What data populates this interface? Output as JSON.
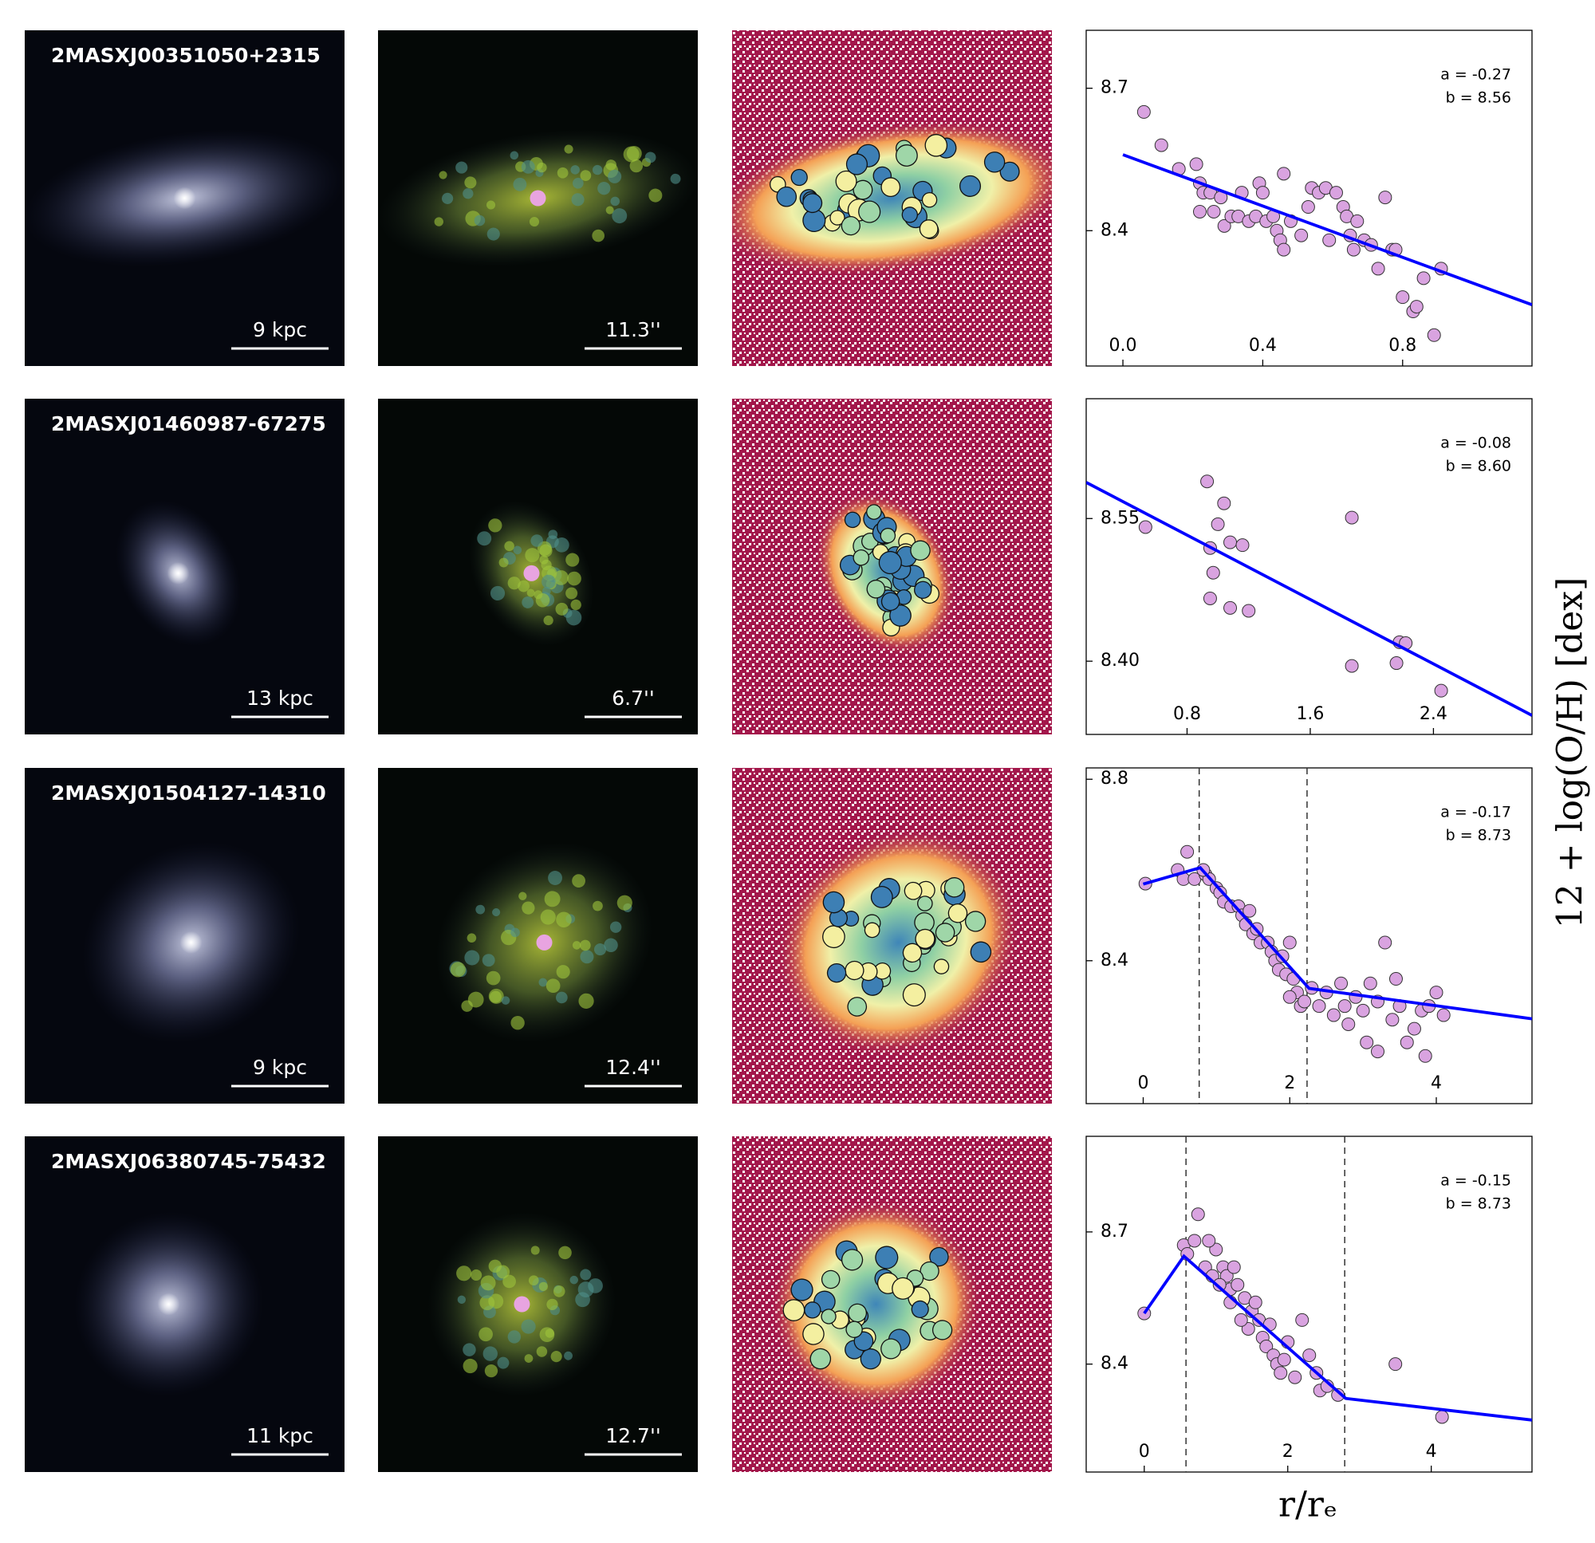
{
  "panels": [
    {
      "name": "2MASXJ00351050+2315",
      "scale_kpc": "9 kpc",
      "scale_arcsec": "11.3''"
    },
    {
      "name": "2MASXJ01460987-67275",
      "scale_kpc": "13 kpc",
      "scale_arcsec": "6.7''"
    },
    {
      "name": "2MASXJ01504127-14310",
      "scale_kpc": "9 kpc",
      "scale_arcsec": "12.4''"
    },
    {
      "name": "2MASXJ06380745-75432",
      "scale_kpc": "11 kpc",
      "scale_arcsec": "12.7''"
    }
  ],
  "figure": {
    "xlabel": "r/rₑ",
    "ylabel": "12 + log(O/H) [dex]"
  },
  "chart_data": [
    {
      "type": "scatter",
      "color": "#d9a3e0",
      "x": [
        0.06,
        0.11,
        0.16,
        0.21,
        0.22,
        0.23,
        0.25,
        0.22,
        0.26,
        0.28,
        0.29,
        0.31,
        0.33,
        0.34,
        0.36,
        0.38,
        0.39,
        0.4,
        0.41,
        0.43,
        0.44,
        0.45,
        0.46,
        0.46,
        0.48,
        0.51,
        0.53,
        0.54,
        0.56,
        0.58,
        0.59,
        0.61,
        0.63,
        0.64,
        0.65,
        0.66,
        0.67,
        0.69,
        0.71,
        0.73,
        0.75,
        0.77,
        0.78,
        0.8,
        0.83,
        0.84,
        0.86,
        0.89,
        0.91
      ],
      "values": [
        8.65,
        8.58,
        8.53,
        8.54,
        8.5,
        8.48,
        8.48,
        8.44,
        8.44,
        8.47,
        8.41,
        8.43,
        8.43,
        8.48,
        8.42,
        8.43,
        8.5,
        8.48,
        8.42,
        8.43,
        8.4,
        8.38,
        8.52,
        8.36,
        8.42,
        8.39,
        8.45,
        8.49,
        8.48,
        8.49,
        8.38,
        8.48,
        8.45,
        8.43,
        8.39,
        8.36,
        8.42,
        8.38,
        8.37,
        8.32,
        8.47,
        8.36,
        8.36,
        8.26,
        8.23,
        8.24,
        8.3,
        8.18,
        8.32
      ],
      "fit": {
        "color": "#0000ff",
        "x": [
          0,
          1.17
        ],
        "values": [
          8.56,
          8.244
        ]
      },
      "vlines": [],
      "annotations": [
        "a = -0.27",
        "b = 8.56"
      ],
      "xlim": [
        -0.105,
        1.17
      ],
      "ylim": [
        8.115,
        8.822
      ],
      "xticks": [
        {
          "value": 0,
          "label": "0.0"
        },
        0.4,
        0.8
      ],
      "yticks": [
        8.4,
        8.7
      ]
    },
    {
      "type": "scatter",
      "color": "#d9a3e0",
      "x": [
        0.53,
        0.93,
        1.04,
        1.0,
        1.08,
        0.95,
        1.16,
        0.97,
        0.95,
        1.08,
        1.2,
        1.87,
        1.87,
        2.16,
        2.18,
        2.22,
        2.45
      ],
      "values": [
        8.541,
        8.589,
        8.566,
        8.544,
        8.525,
        8.519,
        8.522,
        8.493,
        8.466,
        8.456,
        8.453,
        8.551,
        8.395,
        8.398,
        8.42,
        8.419,
        8.369
      ],
      "fit": {
        "color": "#0000ff",
        "x": [
          0.145,
          3.04
        ],
        "values": [
          8.588,
          8.343
        ]
      },
      "vlines": [],
      "annotations": [
        "a = -0.08",
        "b = 8.60"
      ],
      "xlim": [
        0.145,
        3.04
      ],
      "ylim": [
        8.323,
        8.676
      ],
      "xticks": [
        0.8,
        1.6,
        2.4
      ],
      "yticks": [
        {
          "value": 8.4,
          "label": "8.40"
        },
        8.55
      ]
    },
    {
      "type": "scatter",
      "color": "#d9a3e0",
      "x": [
        0.03,
        0.47,
        0.6,
        0.55,
        0.7,
        0.85,
        0.9,
        0.82,
        1.0,
        1.05,
        1.1,
        1.2,
        1.3,
        1.35,
        1.4,
        1.5,
        1.55,
        1.6,
        1.45,
        1.7,
        1.75,
        1.8,
        1.85,
        1.9,
        1.95,
        2.0,
        2.05,
        2.1,
        2.15,
        2.2,
        2.0,
        2.3,
        2.4,
        2.5,
        2.6,
        2.7,
        2.75,
        2.8,
        2.9,
        3.0,
        3.1,
        3.2,
        3.3,
        3.4,
        3.5,
        3.6,
        3.7,
        3.8,
        3.85,
        3.9,
        4.0,
        4.1,
        3.2,
        3.05,
        3.45
      ],
      "values": [
        8.57,
        8.6,
        8.64,
        8.58,
        8.58,
        8.59,
        8.58,
        8.6,
        8.56,
        8.55,
        8.53,
        8.52,
        8.52,
        8.5,
        8.48,
        8.46,
        8.47,
        8.44,
        8.51,
        8.44,
        8.42,
        8.4,
        8.38,
        8.41,
        8.37,
        8.44,
        8.36,
        8.33,
        8.3,
        8.31,
        8.32,
        8.34,
        8.3,
        8.33,
        8.28,
        8.35,
        8.3,
        8.26,
        8.32,
        8.29,
        8.35,
        8.31,
        8.44,
        8.27,
        8.3,
        8.22,
        8.25,
        8.29,
        8.19,
        8.3,
        8.33,
        8.28,
        8.2,
        8.22,
        8.36
      ],
      "fit": {
        "color": "#0000ff",
        "x": [
          0,
          0.778,
          2.264,
          5.306
        ],
        "values": [
          8.569,
          8.605,
          8.339,
          8.272
        ]
      },
      "vlines": [
        0.764,
        2.236
      ],
      "annotations": [
        "a = -0.17",
        "b = 8.73"
      ],
      "xlim": [
        -0.778,
        5.306
      ],
      "ylim": [
        8.085,
        8.825
      ],
      "xticks": [
        0,
        2,
        4
      ],
      "yticks": [
        8.4,
        8.8
      ]
    },
    {
      "type": "scatter",
      "color": "#d9a3e0",
      "x": [
        0.0,
        0.55,
        0.6,
        0.75,
        0.7,
        0.85,
        0.95,
        1.0,
        1.1,
        1.15,
        1.2,
        1.25,
        1.3,
        1.4,
        1.5,
        1.55,
        1.6,
        1.45,
        1.35,
        1.65,
        1.7,
        1.75,
        1.8,
        1.85,
        1.9,
        1.95,
        2.0,
        2.1,
        2.2,
        2.3,
        2.4,
        2.45,
        2.55,
        2.7,
        3.5,
        4.15,
        1.2,
        1.05,
        0.9
      ],
      "values": [
        8.515,
        8.67,
        8.65,
        8.74,
        8.68,
        8.62,
        8.6,
        8.66,
        8.62,
        8.6,
        8.57,
        8.62,
        8.58,
        8.55,
        8.52,
        8.54,
        8.5,
        8.48,
        8.5,
        8.46,
        8.44,
        8.49,
        8.42,
        8.4,
        8.38,
        8.41,
        8.45,
        8.37,
        8.5,
        8.42,
        8.38,
        8.34,
        8.35,
        8.33,
        8.4,
        8.28,
        8.54,
        8.58,
        8.68
      ],
      "fit": {
        "color": "#0000ff",
        "x": [
          0,
          0.553,
          2.809,
          5.404
        ],
        "values": [
          8.515,
          8.645,
          8.322,
          8.273
        ]
      },
      "vlines": [
        0.582,
        2.794
      ],
      "annotations": [
        "a = -0.15",
        "b = 8.73"
      ],
      "xlim": [
        -0.809,
        5.404
      ],
      "ylim": [
        8.155,
        8.917
      ],
      "xticks": [
        0,
        2,
        4
      ],
      "yticks": [
        8.4,
        8.7
      ]
    }
  ]
}
